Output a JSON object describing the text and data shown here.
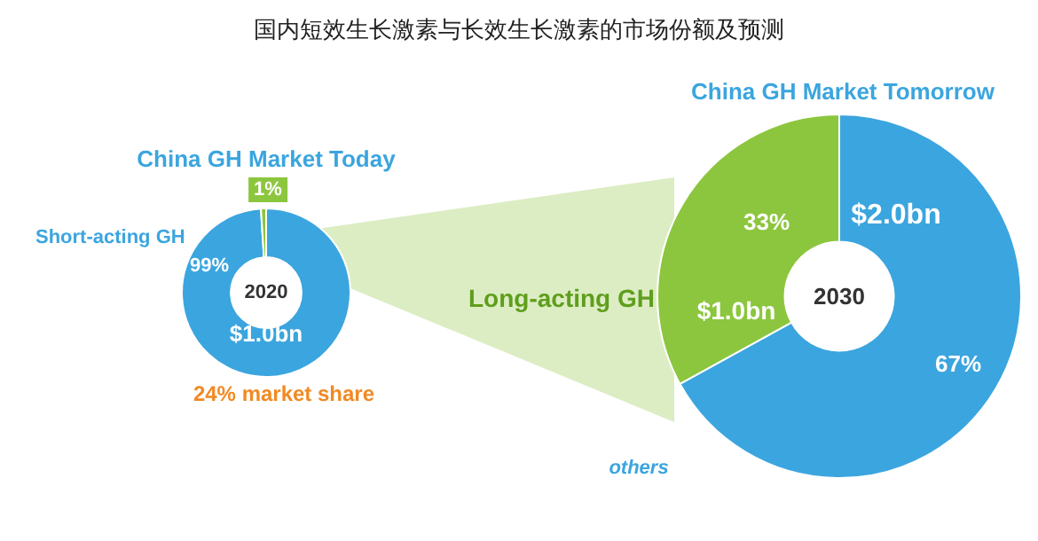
{
  "chart_data": [
    {
      "type": "donut",
      "title": "国内短效生长激素与长效生长激素的市场份额及预测",
      "subtitle": "China GH Market Today",
      "categories": [
        "Short-acting GH",
        null
      ],
      "values": [
        99,
        1
      ],
      "colors": [
        "#3ba5df",
        "#8cc63e"
      ],
      "value_labels": [
        "99%",
        "1%"
      ],
      "annotations": [
        "2020",
        "$1.0bn",
        "24% market share",
        "others"
      ],
      "legend": false
    },
    {
      "type": "donut",
      "title": "China GH Market Tomorrow",
      "categories": [
        null,
        "Long-acting GH"
      ],
      "values": [
        67,
        33
      ],
      "colors": [
        "#3ba5df",
        "#8cc63e"
      ],
      "value_labels": [
        "67%",
        "33%"
      ],
      "annotations": [
        "2030",
        "$2.0bn",
        "$1.0bn"
      ],
      "legend": false
    }
  ]
}
